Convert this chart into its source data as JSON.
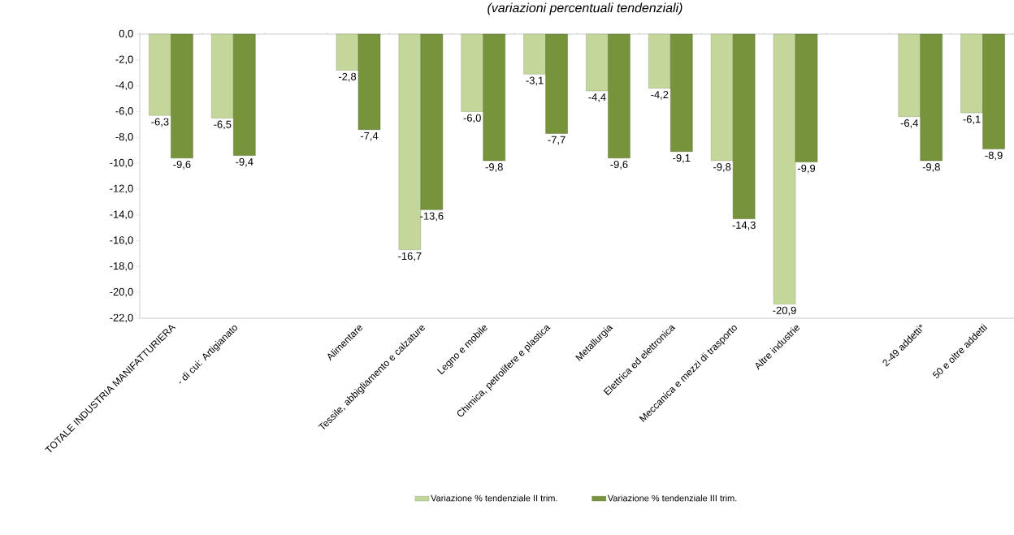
{
  "chart_data": {
    "type": "bar",
    "title": "(variazioni percentuali tendenziali)",
    "categories": [
      "TOTALE INDUSTRIA MANIFATTURIERA",
      "- di cui: Artigianato",
      null,
      "Alimentare",
      "Tessile, abbigliamento e calzature",
      "Legno e mobile",
      "Chimica, petrolifere e plastica",
      "Metallurgia",
      "Elettrica ed elettronica",
      "Meccanica e mezzi di trasporto",
      "Altre industrie",
      null,
      "2-49 addetti*",
      "50 e oltre addetti"
    ],
    "series": [
      {
        "name": "Variazione % tendenziale II trim.",
        "color": "#c4d79b",
        "values": [
          -6.3,
          -6.5,
          null,
          -2.8,
          -16.7,
          -6.0,
          -3.1,
          -4.4,
          -4.2,
          -9.8,
          -20.9,
          null,
          -6.4,
          -6.1
        ],
        "value_labels": [
          "-6,3",
          "-6,5",
          null,
          "-2,8",
          "-16,7",
          "-6,0",
          "-3,1",
          "-4,4",
          "-4,2",
          "-9,8",
          "-20,9",
          null,
          "-6,4",
          "-6,1"
        ]
      },
      {
        "name": "Variazione % tendenziale III trim.",
        "color": "#77933c",
        "values": [
          -9.6,
          -9.4,
          null,
          -7.4,
          -13.6,
          -9.8,
          -7.7,
          -9.6,
          -9.1,
          -14.3,
          -9.9,
          null,
          -9.8,
          -8.9
        ],
        "value_labels": [
          "-9,6",
          "-9,4",
          null,
          "-7,4",
          "-13,6",
          "-9,8",
          "-7,7",
          "-9,6",
          "-9,1",
          "-14,3",
          "-9,9",
          null,
          "-9,8",
          "-8,9"
        ]
      }
    ],
    "ylim": [
      -22,
      0
    ],
    "yticks": [
      {
        "value": 0,
        "label": "0,0"
      },
      {
        "value": -2,
        "label": "-2,0"
      },
      {
        "value": -4,
        "label": "-4,0"
      },
      {
        "value": -6,
        "label": "-6,0"
      },
      {
        "value": -8,
        "label": "-8,0"
      },
      {
        "value": -10,
        "label": "-10,0"
      },
      {
        "value": -12,
        "label": "-12,0"
      },
      {
        "value": -14,
        "label": "-14,0"
      },
      {
        "value": -16,
        "label": "-16,0"
      },
      {
        "value": -18,
        "label": "-18,0"
      },
      {
        "value": -20,
        "label": "-20,0"
      },
      {
        "value": -22,
        "label": "-22,0"
      }
    ],
    "grid": false,
    "legend": "bottom"
  }
}
